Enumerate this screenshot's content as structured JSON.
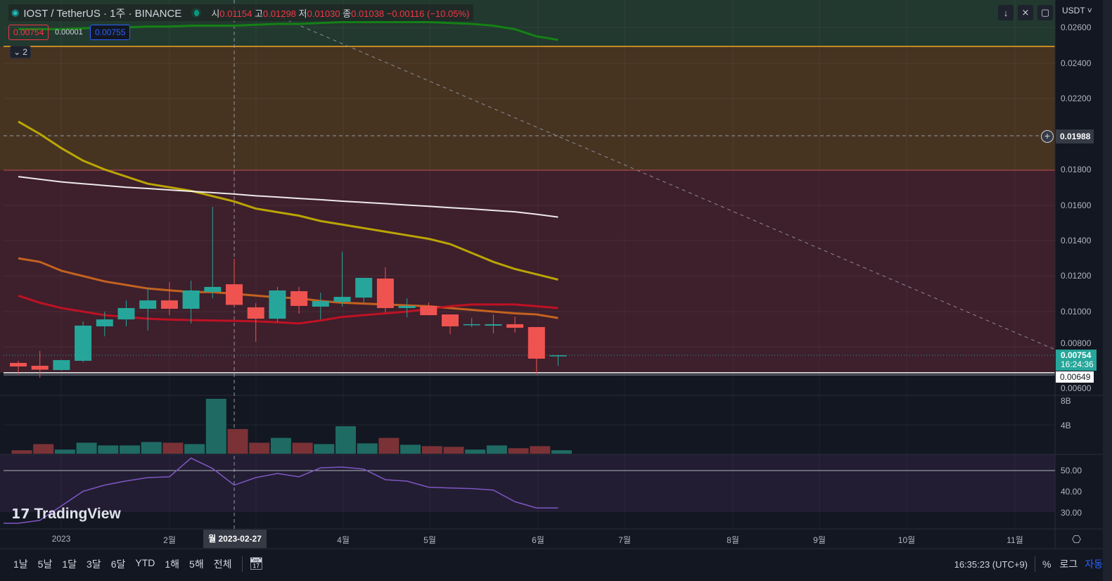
{
  "header": {
    "symbol": "IOST / TetherUS · 1주 · BINANCE",
    "open_label": "시",
    "open": "0.01154",
    "high_label": "고",
    "high": "0.01298",
    "low_label": "저",
    "low": "0.01030",
    "close_label": "종",
    "close": "0.01038",
    "change": "−0.00116 (−10.05%)"
  },
  "quote": {
    "bid": "0.00754",
    "spread": "0.00001",
    "ask": "0.00755"
  },
  "collapse": {
    "label": "2"
  },
  "toolbar": {
    "currency": "USDT"
  },
  "price_axis": {
    "ticks": [
      "0.02600",
      "0.02400",
      "0.02200",
      "0.01800",
      "0.01600",
      "0.01400",
      "0.01200",
      "0.01000",
      "0.00800",
      "0.00600"
    ],
    "crosshair_price": "0.01988",
    "last_price": "0.00754",
    "countdown": "16:24:36",
    "low_marker": "0.00649"
  },
  "volume_axis": {
    "ticks": [
      "8B",
      "4B"
    ]
  },
  "rsi_axis": {
    "ticks": [
      "50.00",
      "40.00",
      "30.00"
    ]
  },
  "time_axis": {
    "labels": [
      "2023",
      "2월",
      "4월",
      "5월",
      "6월",
      "7월",
      "8월",
      "9월",
      "10월",
      "11월"
    ],
    "crosshair": "월 2023-02-27"
  },
  "watermark": "TradingView",
  "bottom": {
    "ranges": [
      "1날",
      "5날",
      "1달",
      "3달",
      "6달",
      "YTD",
      "1해",
      "5해",
      "전체"
    ],
    "clock": "16:35:23 (UTC+9)",
    "percent": "%",
    "log": "로그",
    "auto": "자동"
  },
  "colors": {
    "up": "#26a69a",
    "down": "#ef5350",
    "accent": "#2962ff"
  },
  "chart_data": {
    "type": "candlestick",
    "ylim": [
      0.006,
      0.0265
    ],
    "candles": [
      [
        0.00711,
        0.00723,
        0.00648,
        0.00691
      ],
      [
        0.00695,
        0.00778,
        0.00628,
        0.00673
      ],
      [
        0.00671,
        0.00729,
        0.00667,
        0.00727
      ],
      [
        0.00723,
        0.00945,
        0.00715,
        0.00921
      ],
      [
        0.00917,
        0.01,
        0.00861,
        0.00956
      ],
      [
        0.00956,
        0.01063,
        0.00917,
        0.0102
      ],
      [
        0.01016,
        0.01135,
        0.00893,
        0.01063
      ],
      [
        0.01063,
        0.01166,
        0.0098,
        0.01016
      ],
      [
        0.01016,
        0.01174,
        0.00933,
        0.01119
      ],
      [
        0.01111,
        0.0159,
        0.01075,
        0.01139
      ],
      [
        0.01154,
        0.01298,
        0.0103,
        0.01038
      ],
      [
        0.01024,
        0.01048,
        0.0083,
        0.0096
      ],
      [
        0.0096,
        0.01139,
        0.0094,
        0.01119
      ],
      [
        0.01115,
        0.01139,
        0.00988,
        0.01032
      ],
      [
        0.01028,
        0.01107,
        0.00956,
        0.01059
      ],
      [
        0.01055,
        0.01337,
        0.01028,
        0.01083
      ],
      [
        0.01079,
        0.0119,
        0.01051,
        0.0119
      ],
      [
        0.01186,
        0.0125,
        0.00996,
        0.0102
      ],
      [
        0.0102,
        0.01075,
        0.00968,
        0.01032
      ],
      [
        0.01032,
        0.01051,
        0.0098,
        0.0098
      ],
      [
        0.00984,
        0.00984,
        0.00873,
        0.00917
      ],
      [
        0.00925,
        0.00964,
        0.00913,
        0.00929
      ],
      [
        0.00921,
        0.00984,
        0.00877,
        0.00929
      ],
      [
        0.00929,
        0.00972,
        0.00881,
        0.00909
      ],
      [
        0.00913,
        0.00913,
        0.00649,
        0.00735
      ],
      [
        0.00753,
        0.00758,
        0.00695,
        0.00754
      ]
    ],
    "volume_billions": [
      0.5,
      1.4,
      0.6,
      1.6,
      1.2,
      1.2,
      1.7,
      1.6,
      1.4,
      8.0,
      3.6,
      1.6,
      2.3,
      1.6,
      1.4,
      4.0,
      1.5,
      2.3,
      1.3,
      1.1,
      1.0,
      0.6,
      1.2,
      0.8,
      1.1,
      0.5
    ],
    "rsi": [
      24.6,
      26,
      33,
      40,
      43,
      45,
      46.6,
      47,
      56,
      51,
      43,
      46.6,
      48.6,
      47,
      51.3,
      51.7,
      50.7,
      45.6,
      44.9,
      42,
      41.6,
      41.3,
      40.6,
      35,
      32,
      32
    ],
    "moving_averages": [
      {
        "color": "#c8b400",
        "values": [
          0.0207,
          0.02,
          0.0192,
          0.0185,
          0.018,
          0.0176,
          0.0172,
          0.017,
          0.0168,
          0.0165,
          0.0162,
          0.0158,
          0.0156,
          0.0154,
          0.0151,
          0.0149,
          0.0147,
          0.0145,
          0.0143,
          0.0141,
          0.0138,
          0.0133,
          0.0128,
          0.0124,
          0.0121,
          0.0118
        ]
      },
      {
        "color": "#ffffff",
        "values": [
          0.0176,
          0.01745,
          0.0173,
          0.0172,
          0.0171,
          0.017,
          0.01693,
          0.01685,
          0.01677,
          0.0167,
          0.01662,
          0.01652,
          0.01645,
          0.01637,
          0.0163,
          0.01622,
          0.01615,
          0.01608,
          0.016,
          0.01593,
          0.01585,
          0.01578,
          0.0157,
          0.01562,
          0.01548,
          0.01532
        ]
      },
      {
        "color": "#d2691e",
        "values": [
          0.013,
          0.0128,
          0.0123,
          0.012,
          0.0117,
          0.0115,
          0.0113,
          0.0112,
          0.0111,
          0.0111,
          0.011,
          0.0109,
          0.0108,
          0.01075,
          0.0106,
          0.0105,
          0.01045,
          0.0104,
          0.01035,
          0.0103,
          0.0102,
          0.0101,
          0.01,
          0.0099,
          0.00984,
          0.00964
        ]
      },
      {
        "color": "#cc1122",
        "values": [
          0.0109,
          0.0105,
          0.0102,
          0.01,
          0.0098,
          0.0097,
          0.0096,
          0.00955,
          0.00952,
          0.0095,
          0.00948,
          0.00945,
          0.0094,
          0.00933,
          0.0095,
          0.0097,
          0.0098,
          0.0099,
          0.01,
          0.01015,
          0.0103,
          0.0104,
          0.0104,
          0.0104,
          0.0103,
          0.0102
        ]
      },
      {
        "color": "#138a13",
        "values": [
          0.0259,
          0.0259,
          0.0259,
          0.02595,
          0.026,
          0.026,
          0.02605,
          0.02605,
          0.0261,
          0.0261,
          0.0261,
          0.02615,
          0.0262,
          0.0262,
          0.02625,
          0.0263,
          0.0263,
          0.0263,
          0.0263,
          0.0263,
          0.02625,
          0.0262,
          0.0261,
          0.0259,
          0.0255,
          0.0253
        ]
      }
    ]
  }
}
